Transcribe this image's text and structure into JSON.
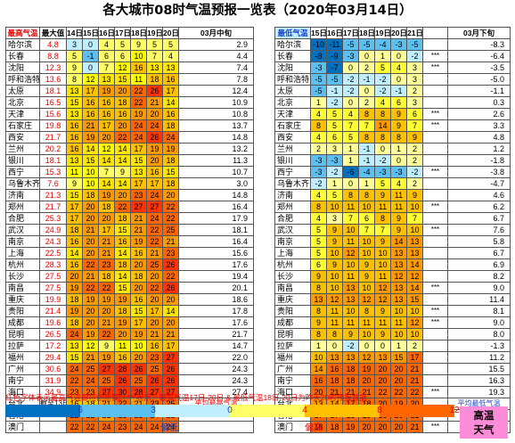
{
  "title": "各大城市08时气温预报一览表（2020年03月14日）",
  "left_table": {
    "headers": [
      "最高气温",
      "最大值",
      "14日",
      "15日",
      "16日",
      "17日",
      "18日",
      "19日",
      "20日",
      "03月中旬"
    ],
    "rows": [
      {
        "city": "哈尔滨",
        "max": "4.8",
        "vals": [
          3,
          0,
          4,
          5,
          9,
          5,
          5
        ],
        "avg": "2.9"
      },
      {
        "city": "长春",
        "max": "8.8",
        "vals": [
          5,
          -1,
          6,
          6,
          10,
          7,
          4
        ],
        "avg": "4.4"
      },
      {
        "city": "沈阳",
        "max": "12.3",
        "vals": [
          9,
          0,
          7,
          12,
          16,
          13,
          13
        ],
        "avg": "7.4"
      },
      {
        "city": "呼和浩特",
        "max": "13.6",
        "vals": [
          8,
          12,
          13,
          15,
          11,
          18,
          16
        ],
        "avg": "7.8"
      },
      {
        "city": "太原",
        "max": "18.1",
        "vals": [
          13,
          17,
          19,
          20,
          22,
          26,
          17
        ],
        "avg": "12.4"
      },
      {
        "city": "北京",
        "max": "16.5",
        "vals": [
          15,
          16,
          16,
          18,
          22,
          21,
          14
        ],
        "avg": "10.9"
      },
      {
        "city": "天津",
        "max": "15.6",
        "vals": [
          13,
          16,
          16,
          16,
          19,
          20,
          16
        ],
        "avg": "10.8"
      },
      {
        "city": "石家庄",
        "max": "19.8",
        "vals": [
          16,
          21,
          17,
          20,
          24,
          24,
          18
        ],
        "avg": "13.7"
      },
      {
        "city": "西安",
        "max": "21.7",
        "vals": [
          16,
          19,
          20,
          22,
          24,
          26,
          24
        ],
        "avg": "14.8"
      },
      {
        "city": "兰州",
        "max": "20.2",
        "vals": [
          16,
          14,
          12,
          14,
          17,
          19,
          19
        ],
        "avg": "13.2"
      },
      {
        "city": "银川",
        "max": "18.1",
        "vals": [
          13,
          15,
          14,
          14,
          15,
          20,
          18
        ],
        "avg": "11.3"
      },
      {
        "city": "西宁",
        "max": "15.3",
        "vals": [
          11,
          10,
          7,
          9,
          13,
          16,
          15
        ],
        "avg": "10.7"
      },
      {
        "city": "乌鲁木齐",
        "max": "7.6",
        "vals": [
          9,
          10,
          14,
          14,
          17,
          17,
          18
        ],
        "avg": "3.0"
      },
      {
        "city": "济南",
        "max": "21.3",
        "vals": [
          15,
          18,
          19,
          20,
          23,
          24,
          20
        ],
        "avg": "14.8"
      },
      {
        "city": "郑州",
        "max": "21.7",
        "vals": [
          17,
          20,
          18,
          22,
          27,
          27,
          22
        ],
        "avg": "16.4"
      },
      {
        "city": "合肥",
        "max": "25.3",
        "vals": [
          17,
          20,
          20,
          18,
          21,
          24,
          22
        ],
        "avg": "17.9"
      },
      {
        "city": "武汉",
        "max": "24.9",
        "vals": [
          18,
          21,
          17,
          15,
          21,
          22,
          25
        ],
        "avg": "18.1"
      },
      {
        "city": "南京",
        "max": "24.3",
        "vals": [
          16,
          20,
          21,
          16,
          19,
          22,
          21
        ],
        "avg": "16.4"
      },
      {
        "city": "上海",
        "max": "22.5",
        "vals": [
          14,
          20,
          21,
          14,
          16,
          21,
          23
        ],
        "avg": "15.6"
      },
      {
        "city": "杭州",
        "max": "28.3",
        "vals": [
          16,
          22,
          23,
          18,
          20,
          25,
          26
        ],
        "avg": "17.6"
      },
      {
        "city": "长沙",
        "max": "27.5",
        "vals": [
          20,
          21,
          18,
          14,
          18,
          20,
          22
        ],
        "avg": "19.4"
      },
      {
        "city": "南昌",
        "max": "27.5",
        "vals": [
          19,
          22,
          22,
          15,
          20,
          22,
          26
        ],
        "avg": "20.1"
      },
      {
        "city": "重庆",
        "max": "19.9",
        "vals": [
          18,
          19,
          19,
          19,
          16,
          20,
          20
        ],
        "avg": "18.6"
      },
      {
        "city": "贵阳",
        "max": "21.4",
        "vals": [
          19,
          20,
          20,
          18,
          15,
          17,
          14
        ],
        "avg": "17.8"
      },
      {
        "city": "成都",
        "max": "19.6",
        "vals": [
          18,
          20,
          21,
          19,
          17,
          20,
          20
        ],
        "avg": "17.6"
      },
      {
        "city": "昆明",
        "max": "26.5",
        "vals": [
          24,
          19,
          22,
          20,
          19,
          21,
          21
        ],
        "avg": "21.7"
      },
      {
        "city": "拉萨",
        "max": "17.2",
        "vals": [
          13,
          12,
          9,
          11,
          10,
          16,
          17
        ],
        "avg": "14.7"
      },
      {
        "city": "福州",
        "max": "29.4",
        "vals": [
          15,
          21,
          19,
          16,
          20,
          23,
          27
        ],
        "avg": "22.0"
      },
      {
        "city": "广州",
        "max": "30.6",
        "vals": [
          24,
          25,
          27,
          28,
          26,
          25,
          26
        ],
        "avg": "24.3"
      },
      {
        "city": "南宁",
        "max": "31.9",
        "vals": [
          22,
          24,
          25,
          26,
          25,
          26,
          26
        ],
        "avg": "24.3"
      },
      {
        "city": "海口",
        "max": "34.9",
        "vals": [
          23,
          23,
          27,
          30,
          28,
          27,
          27
        ],
        "avg": "27.4"
      },
      {
        "city": "台北",
        "max": "截至13日",
        "vals": [
          16,
          18,
          21,
          22,
          21,
          23,
          25
        ],
        "avg": "平均最高气温"
      },
      {
        "city": "香港",
        "max": "",
        "vals": [
          22,
          22,
          21,
          23,
          23,
          24,
          23
        ],
        "avg": ""
      },
      {
        "city": "澳门",
        "max": "",
        "vals": [
          22,
          22,
          24,
          23,
          24,
          24,
          24
        ],
        "avg": ""
      }
    ]
  },
  "right_table": {
    "headers": [
      "最低气温",
      "15日",
      "16日",
      "17日",
      "18日",
      "19日",
      "20日",
      "21日",
      "下旬",
      "03月下旬"
    ],
    "rows": [
      {
        "city": "哈尔滨",
        "vals": [
          -10,
          -11,
          -5,
          -5,
          -4,
          -3,
          -5
        ],
        "flag": "",
        "c1": "-8.3",
        "c2": "-5.2"
      },
      {
        "city": "长春",
        "vals": [
          -8,
          -9,
          -3,
          0,
          1,
          0,
          -2
        ],
        "flag": "***",
        "c1": "-6.4",
        "c2": "-4.0"
      },
      {
        "city": "沈阳",
        "vals": [
          -3,
          -7,
          0,
          2,
          5,
          4,
          3
        ],
        "flag": "***",
        "c1": "-3.5",
        "c2": "-1.5"
      },
      {
        "city": "呼和浩特",
        "vals": [
          -5,
          -5,
          -2,
          -1,
          -2,
          0,
          3
        ],
        "flag": "",
        "c1": "-5.0",
        "c2": "-2.4"
      },
      {
        "city": "太原",
        "vals": [
          -5,
          -1,
          -2,
          0,
          -2,
          -1,
          2
        ],
        "flag": "",
        "c1": "-1.1",
        "c2": "0.6"
      },
      {
        "city": "北京",
        "vals": [
          1,
          -2,
          0,
          2,
          4,
          6,
          3
        ],
        "flag": "",
        "c1": "0.3",
        "c2": "2.5"
      },
      {
        "city": "天津",
        "vals": [
          4,
          5,
          4,
          8,
          8,
          9,
          6
        ],
        "flag": "***",
        "c1": "2.6",
        "c2": "4.0"
      },
      {
        "city": "石家庄",
        "vals": [
          8,
          5,
          7,
          7,
          14,
          9,
          7
        ],
        "flag": "***",
        "c1": "3.3",
        "c2": "4.7"
      },
      {
        "city": "西安",
        "vals": [
          4,
          6,
          5,
          8,
          8,
          8,
          9
        ],
        "flag": "",
        "c1": "4.8",
        "c2": "6.4"
      },
      {
        "city": "兰州",
        "vals": [
          2,
          3,
          1,
          -1,
          0,
          1,
          2
        ],
        "flag": "",
        "c1": "1.2",
        "c2": "3.2"
      },
      {
        "city": "银川",
        "vals": [
          -3,
          -3,
          1,
          -1,
          -2,
          0,
          2
        ],
        "flag": "",
        "c1": "-1.8",
        "c2": "1.1"
      },
      {
        "city": "西宁",
        "vals": [
          -3,
          -2,
          -6,
          -4,
          -3,
          -3,
          -2
        ],
        "flag": "***",
        "c1": "-3.8",
        "c2": "-1.6"
      },
      {
        "city": "乌鲁木齐",
        "vals": [
          -2,
          1,
          0,
          1,
          5,
          4,
          2
        ],
        "flag": "",
        "c1": "-4.7",
        "c2": "0.1"
      },
      {
        "city": "济南",
        "vals": [
          4,
          5,
          8,
          8,
          9,
          11,
          9
        ],
        "flag": "",
        "c1": "4.6",
        "c2": "6.0"
      },
      {
        "city": "郑州",
        "vals": [
          8,
          10,
          11,
          10,
          11,
          11,
          10
        ],
        "flag": "***",
        "c1": "6.2",
        "c2": "7.6"
      },
      {
        "city": "合肥",
        "vals": [
          4,
          3,
          7,
          6,
          8,
          9,
          7
        ],
        "flag": "",
        "c1": "6.7",
        "c2": "8.4"
      },
      {
        "city": "武汉",
        "vals": [
          5,
          9,
          10,
          7,
          7,
          9,
          10
        ],
        "flag": "***",
        "c1": "7.6",
        "c2": "9.4"
      },
      {
        "city": "南京",
        "vals": [
          5,
          9,
          11,
          10,
          9,
          14,
          13
        ],
        "flag": "",
        "c1": "5.8",
        "c2": "7.4"
      },
      {
        "city": "上海",
        "vals": [
          5,
          10,
          12,
          10,
          10,
          13,
          13
        ],
        "flag": "",
        "c1": "6.7",
        "c2": "7.6"
      },
      {
        "city": "杭州",
        "vals": [
          6,
          9,
          10,
          9,
          10,
          13,
          14
        ],
        "flag": "",
        "c1": "6.9",
        "c2": "8.6"
      },
      {
        "city": "长沙",
        "vals": [
          9,
          10,
          11,
          9,
          11,
          12,
          12
        ],
        "flag": "",
        "c1": "8.2",
        "c2": "9.7"
      },
      {
        "city": "南昌",
        "vals": [
          8,
          10,
          13,
          10,
          12,
          13,
          14
        ],
        "flag": "***",
        "c1": "9.0",
        "c2": "9.8"
      },
      {
        "city": "重庆",
        "vals": [
          13,
          12,
          13,
          12,
          12,
          13,
          15
        ],
        "flag": "",
        "c1": "11.4",
        "c2": "12.4"
      },
      {
        "city": "贵阳",
        "vals": [
          8,
          11,
          10,
          8,
          9,
          10,
          10
        ],
        "flag": "***",
        "c1": "8.1",
        "c2": "8.8"
      },
      {
        "city": "成都",
        "vals": [
          9,
          11,
          11,
          11,
          11,
          11,
          12
        ],
        "flag": "***",
        "c1": "9.0",
        "c2": "9.9"
      },
      {
        "city": "昆明",
        "vals": [
          8,
          8,
          9,
          10,
          9,
          10,
          10
        ],
        "flag": "",
        "c1": "8.0",
        "c2": "8.8"
      },
      {
        "city": "拉萨",
        "vals": [
          1,
          0,
          -2,
          0,
          0,
          1,
          2
        ],
        "flag": "",
        "c1": "-1.3",
        "c2": "0.1"
      },
      {
        "city": "福州",
        "vals": [
          10,
          13,
          13,
          12,
          13,
          15,
          17
        ],
        "flag": "",
        "c1": "11.2",
        "c2": "11.9"
      },
      {
        "city": "广州",
        "vals": [
          14,
          16,
          18,
          19,
          20,
          20,
          21
        ],
        "flag": "",
        "c1": "15.5",
        "c2": "16.7"
      },
      {
        "city": "南宁",
        "vals": [
          16,
          18,
          18,
          20,
          20,
          20,
          21
        ],
        "flag": "",
        "c1": "16.3",
        "c2": "17.7"
      },
      {
        "city": "海口",
        "vals": [
          20,
          21,
          21,
          21,
          22,
          22,
          22
        ],
        "flag": "***",
        "c1": "19.3",
        "c2": "20.3"
      },
      {
        "city": "台北",
        "vals": [
          13,
          14,
          17,
          18,
          20,
          19,
          20
        ],
        "flag": "",
        "c1": "平均最低气温",
        "c2": ""
      },
      {
        "city": "香港",
        "vals": [
          17,
          17,
          18,
          19,
          19,
          20,
          21
        ],
        "flag": "***",
        "c1": "",
        "c2": ""
      },
      {
        "city": "澳门",
        "vals": [
          18,
          18,
          19,
          20,
          20,
          20,
          21
        ],
        "flag": "***",
        "c1": "",
        "c2": ""
      }
    ]
  },
  "footnote": "红色字体表示最高气温即将创新高!!!  ***表示：最高气温17日-20日 & 最低气温18日-20日为昨天20时预报数据",
  "legend": {
    "numbers": [
      "6",
      "3",
      "0",
      "4",
      "8",
      "12"
    ],
    "low_label": "偏低",
    "high_label": "偏高",
    "hot_label_1": "高温",
    "hot_label_2": "天气",
    "colors": [
      "#0070c0",
      "#5bc0f0",
      "#bfefff",
      "#ffff66",
      "#ffc000",
      "#ff6600",
      "#ff8cd9"
    ]
  }
}
